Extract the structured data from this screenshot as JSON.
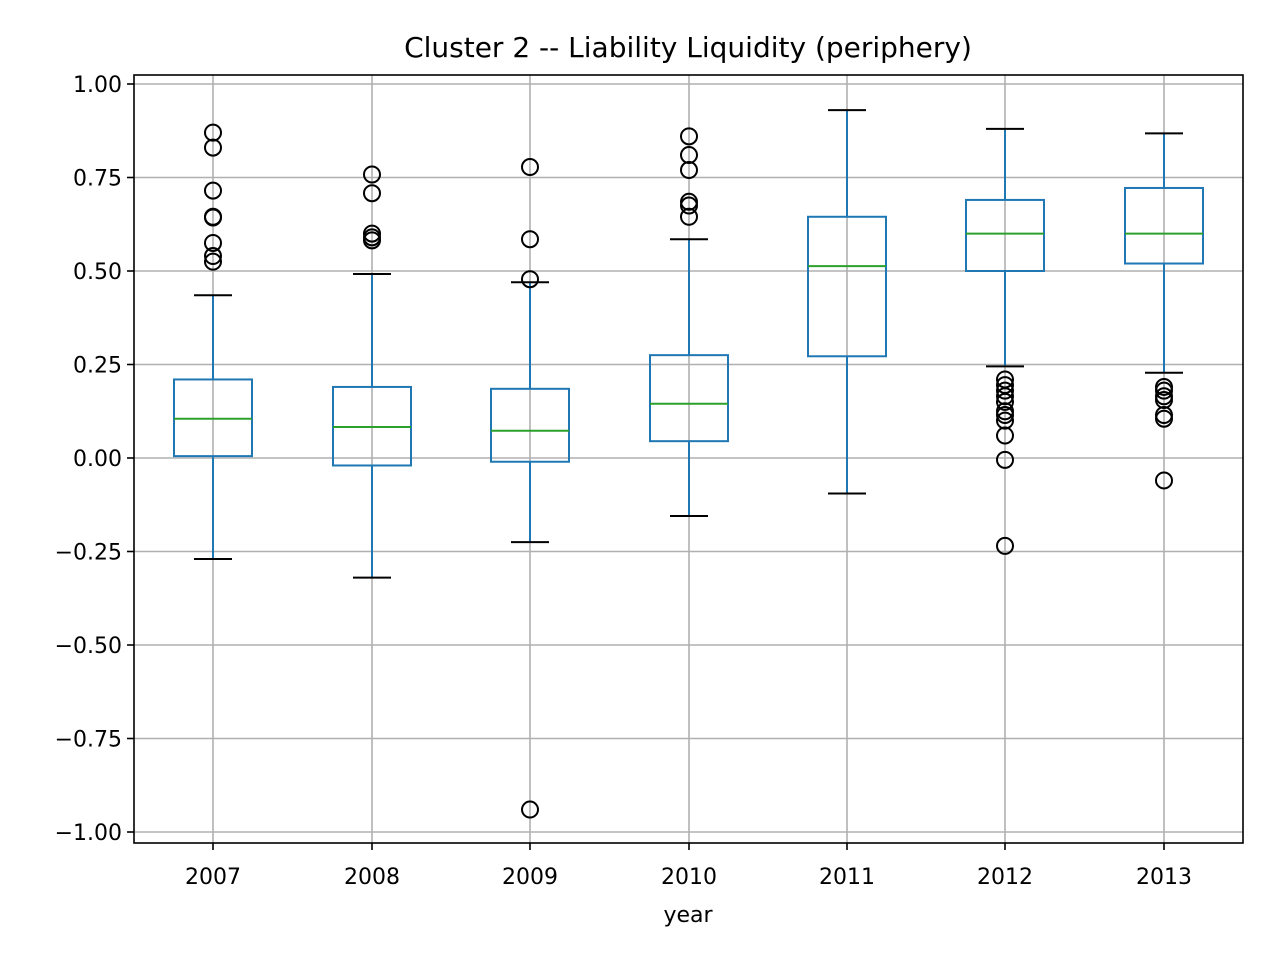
{
  "chart_data": {
    "type": "boxplot",
    "title": "Cluster 2 -- Liability Liquidity (periphery)",
    "xlabel": "year",
    "ylabel": "",
    "ylim": [
      -1.03,
      1.03
    ],
    "yticks": [
      1.0,
      0.75,
      0.5,
      0.25,
      0.0,
      -0.25,
      -0.5,
      -0.75,
      -1.0
    ],
    "ytick_labels": [
      "1.00",
      "0.75",
      "0.50",
      "0.25",
      "0.00",
      "−0.25",
      "−0.50",
      "−0.75",
      "−1.00"
    ],
    "grid": true,
    "categories": [
      "2007",
      "2008",
      "2009",
      "2010",
      "2011",
      "2012",
      "2013"
    ],
    "boxes": [
      {
        "whisker_low": -0.27,
        "q1": 0.005,
        "median": 0.105,
        "q3": 0.21,
        "whisker_high": 0.435,
        "fliers": [
          0.87,
          0.83,
          0.715,
          0.645,
          0.643,
          0.575,
          0.54,
          0.525
        ]
      },
      {
        "whisker_low": -0.32,
        "q1": -0.02,
        "median": 0.083,
        "q3": 0.19,
        "whisker_high": 0.492,
        "fliers": [
          0.758,
          0.708,
          0.6,
          0.59,
          0.582
        ]
      },
      {
        "whisker_low": -0.225,
        "q1": -0.01,
        "median": 0.073,
        "q3": 0.185,
        "whisker_high": 0.47,
        "fliers": [
          0.778,
          0.585,
          0.478,
          -0.94
        ]
      },
      {
        "whisker_low": -0.155,
        "q1": 0.045,
        "median": 0.145,
        "q3": 0.275,
        "whisker_high": 0.585,
        "fliers": [
          0.86,
          0.81,
          0.77,
          0.685,
          0.675,
          0.645
        ]
      },
      {
        "whisker_low": -0.095,
        "q1": 0.272,
        "median": 0.513,
        "q3": 0.645,
        "whisker_high": 0.93,
        "fliers": []
      },
      {
        "whisker_low": 0.245,
        "q1": 0.5,
        "median": 0.6,
        "q3": 0.69,
        "whisker_high": 0.88,
        "fliers": [
          0.21,
          0.195,
          0.18,
          0.165,
          0.15,
          0.125,
          0.115,
          0.1,
          0.06,
          -0.005,
          -0.235
        ]
      },
      {
        "whisker_low": 0.228,
        "q1": 0.52,
        "median": 0.6,
        "q3": 0.722,
        "whisker_high": 0.868,
        "fliers": [
          0.19,
          0.18,
          0.165,
          0.155,
          0.115,
          0.105,
          -0.06
        ]
      }
    ],
    "colors": {
      "box": "#1f77b4",
      "median": "#2ca02c",
      "cap": "#000000",
      "grid": "#b0b0b0"
    }
  }
}
